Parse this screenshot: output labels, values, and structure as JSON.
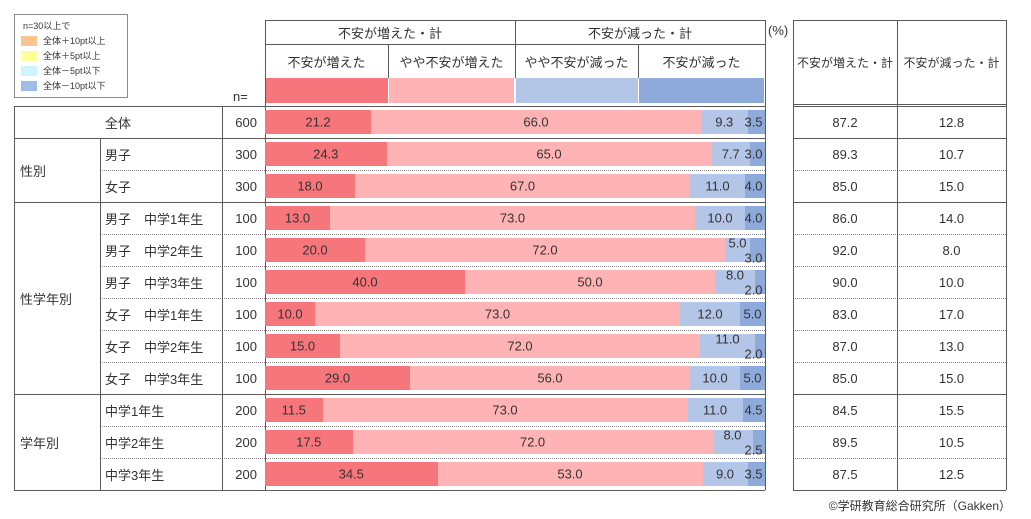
{
  "legend": {
    "title": "n=30以上で",
    "items": [
      {
        "label": "全体＋10pt以上",
        "color": "#fbc490"
      },
      {
        "label": "全体＋5pt以上",
        "color": "#ffff99"
      },
      {
        "label": "全体－5pt以下",
        "color": "#ccf5ff"
      },
      {
        "label": "全体－10pt以下",
        "color": "#9dbde6"
      }
    ]
  },
  "header": {
    "group_increase": "不安が増えた・計",
    "group_decrease": "不安が減った・計",
    "unit": "(%)",
    "n_label": "n=",
    "sub": [
      "不安が増えた",
      "やや不安が増えた",
      "やや不安が減った",
      "不安が減った"
    ],
    "right_cols": [
      "不安が増えた・計",
      "不安が減った・計"
    ]
  },
  "colors": {
    "series": [
      "#f7767c",
      "#ffb3b5",
      "#b4c6e7",
      "#8eaadb"
    ]
  },
  "chart_data": {
    "type": "bar",
    "orientation": "horizontal",
    "stacked": true,
    "xlim": [
      0,
      100
    ],
    "series": [
      {
        "name": "不安が増えた"
      },
      {
        "name": "やや不安が増えた"
      },
      {
        "name": "やや不安が減った"
      },
      {
        "name": "不安が減った"
      }
    ],
    "rows": [
      {
        "group": "",
        "label": "全体",
        "n": "600",
        "values": [
          "21.2",
          "66.0",
          "9.3",
          "3.5"
        ],
        "total_increase": "87.2",
        "total_decrease": "12.8"
      },
      {
        "group": "性別",
        "label": "男子",
        "n": "300",
        "values": [
          "24.3",
          "65.0",
          "7.7",
          "3.0"
        ],
        "total_increase": "89.3",
        "total_decrease": "10.7"
      },
      {
        "group": "性別",
        "label": "女子",
        "n": "300",
        "values": [
          "18.0",
          "67.0",
          "11.0",
          "4.0"
        ],
        "total_increase": "85.0",
        "total_decrease": "15.0"
      },
      {
        "group": "性学年別",
        "label": "男子　中学1年生",
        "n": "100",
        "values": [
          "13.0",
          "73.0",
          "10.0",
          "4.0"
        ],
        "total_increase": "86.0",
        "total_decrease": "14.0"
      },
      {
        "group": "性学年別",
        "label": "男子　中学2年生",
        "n": "100",
        "values": [
          "20.0",
          "72.0",
          "5.0",
          "3.0"
        ],
        "total_increase": "92.0",
        "total_decrease": "8.0"
      },
      {
        "group": "性学年別",
        "label": "男子　中学3年生",
        "n": "100",
        "values": [
          "40.0",
          "50.0",
          "8.0",
          "2.0"
        ],
        "total_increase": "90.0",
        "total_decrease": "10.0"
      },
      {
        "group": "性学年別",
        "label": "女子　中学1年生",
        "n": "100",
        "values": [
          "10.0",
          "73.0",
          "12.0",
          "5.0"
        ],
        "total_increase": "83.0",
        "total_decrease": "17.0"
      },
      {
        "group": "性学年別",
        "label": "女子　中学2年生",
        "n": "100",
        "values": [
          "15.0",
          "72.0",
          "11.0",
          "2.0"
        ],
        "total_increase": "87.0",
        "total_decrease": "13.0"
      },
      {
        "group": "性学年別",
        "label": "女子　中学3年生",
        "n": "100",
        "values": [
          "29.0",
          "56.0",
          "10.0",
          "5.0"
        ],
        "total_increase": "85.0",
        "total_decrease": "15.0"
      },
      {
        "group": "学年別",
        "label": "中学1年生",
        "n": "200",
        "values": [
          "11.5",
          "73.0",
          "11.0",
          "4.5"
        ],
        "total_increase": "84.5",
        "total_decrease": "15.5"
      },
      {
        "group": "学年別",
        "label": "中学2年生",
        "n": "200",
        "values": [
          "17.5",
          "72.0",
          "8.0",
          "2.5"
        ],
        "total_increase": "89.5",
        "total_decrease": "10.5"
      },
      {
        "group": "学年別",
        "label": "中学3年生",
        "n": "200",
        "values": [
          "34.5",
          "53.0",
          "9.0",
          "3.5"
        ],
        "total_increase": "87.5",
        "total_decrease": "12.5"
      }
    ]
  },
  "footer": "©学研教育総合研究所（Gakken）"
}
